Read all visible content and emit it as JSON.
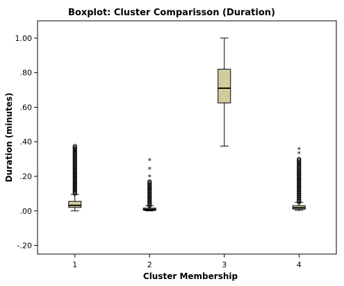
{
  "chart_data": {
    "type": "boxplot",
    "title": "Boxplot: Cluster Comparisson (Duration)",
    "xlabel": "Cluster Membership",
    "ylabel": "Duration (minutes)",
    "ylim": [
      -0.25,
      1.1
    ],
    "yticks": [
      {
        "value": 1.0,
        "label": "1.00"
      },
      {
        "value": 0.8,
        "label": ".80"
      },
      {
        "value": 0.6,
        "label": ".60"
      },
      {
        "value": 0.4,
        "label": ".40"
      },
      {
        "value": 0.2,
        "label": ".20"
      },
      {
        "value": 0.0,
        "label": ".00"
      },
      {
        "value": -0.2,
        "label": "-.20"
      }
    ],
    "categories": [
      "1",
      "2",
      "3",
      "4"
    ],
    "grid": false,
    "colors": {
      "box_fill": "#cfcd9b",
      "stroke": "#000000",
      "plot_border": "#000000"
    },
    "boxes": [
      {
        "category": "1",
        "whisker_low": 0.0,
        "q1": 0.02,
        "median": 0.032,
        "q3": 0.055,
        "whisker_high": 0.095,
        "outliers_range": [
          0.1,
          0.375
        ],
        "extremes": []
      },
      {
        "category": "2",
        "whisker_low": 0.0,
        "q1": 0.003,
        "median": 0.009,
        "q3": 0.016,
        "whisker_high": 0.03,
        "outliers_range": [
          0.03,
          0.17
        ],
        "extremes": [
          0.195,
          0.24,
          0.29
        ]
      },
      {
        "category": "3",
        "whisker_low": 0.375,
        "q1": 0.625,
        "median": 0.71,
        "q3": 0.82,
        "whisker_high": 1.0,
        "outliers_range": null,
        "extremes": []
      },
      {
        "category": "4",
        "whisker_low": 0.003,
        "q1": 0.01,
        "median": 0.018,
        "q3": 0.03,
        "whisker_high": 0.05,
        "outliers_range": [
          0.05,
          0.3
        ],
        "extremes": [
          0.33,
          0.355
        ]
      }
    ]
  }
}
